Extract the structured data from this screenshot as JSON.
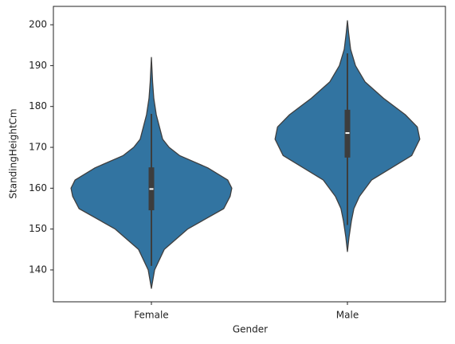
{
  "chart_data": {
    "type": "violin",
    "x_label": "Gender",
    "y_label": "StandingHeightCm",
    "categories": [
      "Female",
      "Male"
    ],
    "color": "#3274a1",
    "box_color": "#3d3d3d",
    "median_color": "#ffffff",
    "whisker_low": [
      141,
      151
    ],
    "q1": [
      154.6,
      167.5
    ],
    "median": [
      159.8,
      173.5
    ],
    "q3": [
      165.1,
      179.2
    ],
    "whisker_high": [
      178.2,
      193
    ],
    "kde": [
      {
        "y": [
          135.5,
          140,
          145,
          150,
          155,
          158,
          160,
          162,
          165,
          168,
          170,
          172,
          175,
          178,
          182,
          186,
          192
        ],
        "density": [
          0,
          0.04,
          0.16,
          0.45,
          0.9,
          0.98,
          1,
          0.95,
          0.7,
          0.35,
          0.22,
          0.14,
          0.1,
          0.06,
          0.03,
          0.015,
          0
        ]
      },
      {
        "y": [
          144.5,
          148,
          152,
          155,
          158,
          162,
          165,
          168,
          172,
          175,
          178,
          182,
          186,
          190,
          194,
          198,
          201
        ],
        "density": [
          0,
          0.02,
          0.05,
          0.08,
          0.15,
          0.3,
          0.55,
          0.8,
          0.9,
          0.87,
          0.72,
          0.45,
          0.22,
          0.1,
          0.04,
          0.015,
          0
        ]
      }
    ],
    "ylim": [
      132.2,
      204.5
    ],
    "yticks": [
      140,
      150,
      160,
      170,
      180,
      190,
      200
    ]
  }
}
